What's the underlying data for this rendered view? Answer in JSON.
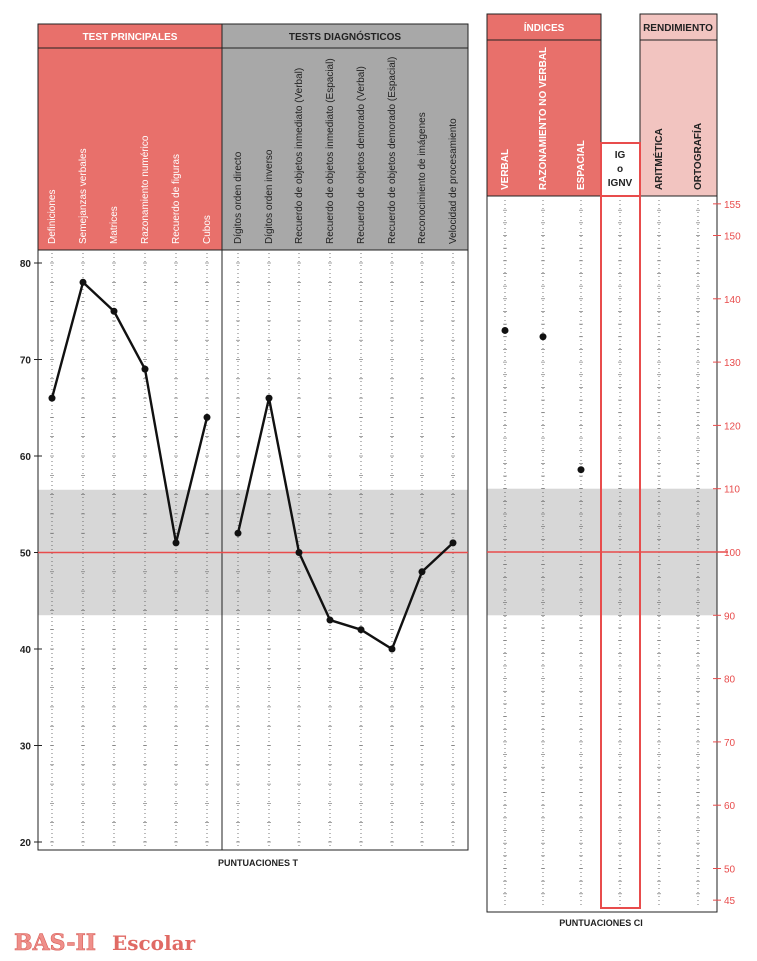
{
  "chart_data": {
    "type": "line",
    "left_panel": {
      "group_headers": [
        "TEST PRINCIPALES",
        "TESTS DIAGNÓSTICOS"
      ],
      "categories": [
        "Definiciones",
        "Semejanzas verbales",
        "Matrices",
        "Razonamiento numérico",
        "Recuerdo de figuras",
        "Cubos",
        "Dígitos orden directo",
        "Dígitos orden inverso",
        "Recuerdo de objetos inmediato (Verbal)",
        "Recuerdo de objetos inmediato (Espacial)",
        "Recuerdo de objetos demorado (Verbal)",
        "Recuerdo de objetos demorado (Espacial)",
        "Reconocimiento de imágenes",
        "Velocidad de procesamiento"
      ],
      "series": [
        {
          "values": [
            66,
            78,
            75,
            69,
            51,
            64
          ]
        },
        {
          "values": [
            52,
            66,
            50,
            43,
            42,
            40,
            48,
            51
          ]
        }
      ],
      "ylim": [
        20,
        80
      ],
      "yticks": [
        "80",
        "70",
        "60",
        "50",
        "40",
        "30",
        "20"
      ],
      "xlabel": "PUNTUACIONES T",
      "reference_line": 50,
      "band": [
        43.5,
        56.5
      ]
    },
    "right_panel": {
      "group_headers": [
        "ÍNDICES",
        "RENDIMIENTO"
      ],
      "categories": [
        "VERBAL",
        "RAZONAMIENTO NO VERBAL",
        "ESPACIAL",
        "IG o IGNV",
        "ARITMÉTICA",
        "ORTOGRAFÍA"
      ],
      "ig_lines": [
        "IG",
        "o",
        "IGNV"
      ],
      "values": [
        135,
        134,
        113,
        null,
        null,
        null
      ],
      "ylim": [
        45,
        155
      ],
      "yticks": [
        "155",
        "150",
        "140",
        "130",
        "120",
        "110",
        "100",
        "90",
        "80",
        "70",
        "60",
        "50",
        "45"
      ],
      "xlabel": "PUNTUACIONES CI",
      "reference_line": 100,
      "band": [
        90,
        110
      ]
    }
  },
  "colors": {
    "salmon": "#e8706b",
    "gray": "#a8a8a8",
    "pink": "#f2c4c0",
    "band": "#d7d7d7",
    "red": "#e84c4c"
  },
  "logo": {
    "brand": "BAS-II",
    "edition": "Escolar"
  }
}
